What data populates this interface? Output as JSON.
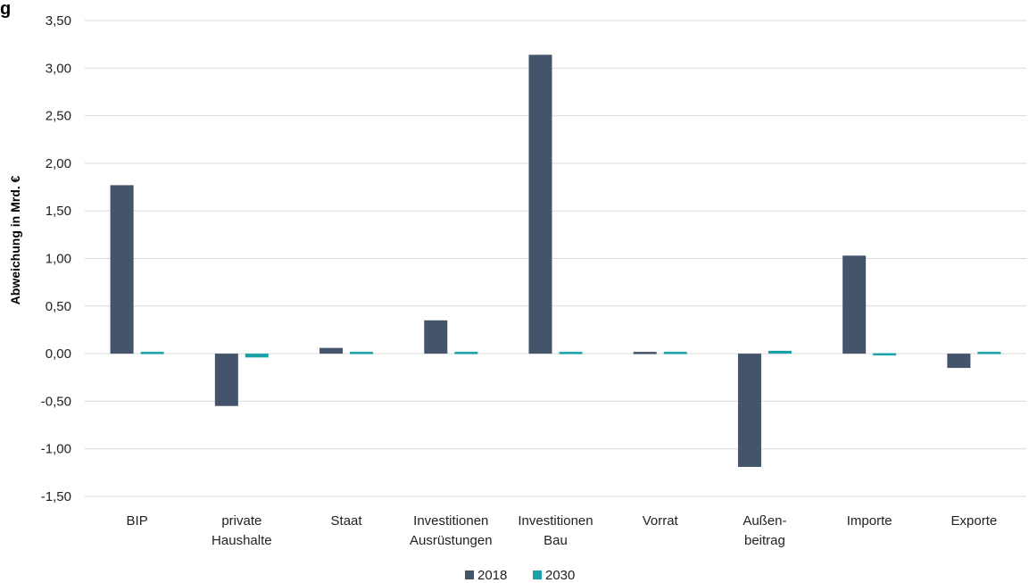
{
  "chart_data": {
    "type": "bar",
    "title": "g",
    "xlabel": "",
    "ylabel": "Abweichung in Mrd. €",
    "ylim": [
      -1.5,
      3.5
    ],
    "yticks": [
      3.5,
      3.0,
      2.5,
      2.0,
      1.5,
      1.0,
      0.5,
      0.0,
      -0.5,
      -1.0,
      -1.5
    ],
    "ytick_labels": [
      "3,50",
      "3,00",
      "2,50",
      "2,00",
      "1,50",
      "1,00",
      "0,50",
      "0,00",
      "-0,50",
      "-1,00",
      "-1,50"
    ],
    "grid": true,
    "legend_position": "bottom",
    "categories": [
      [
        "BIP"
      ],
      [
        "private",
        "Haushalte"
      ],
      [
        "Staat"
      ],
      [
        "Investitionen",
        "Ausrüstungen"
      ],
      [
        "Investitionen",
        "Bau"
      ],
      [
        "Vorrat"
      ],
      [
        "Außen-",
        "beitrag"
      ],
      [
        "Importe"
      ],
      [
        "Exporte"
      ]
    ],
    "series": [
      {
        "name": "2018",
        "color": "#44546a",
        "values": [
          1.77,
          -0.55,
          0.06,
          0.35,
          3.14,
          0.01,
          -1.19,
          1.03,
          -0.15
        ]
      },
      {
        "name": "2030",
        "color": "#17a2a8",
        "values": [
          0.01,
          -0.04,
          0.01,
          0.02,
          0.01,
          0.0,
          0.03,
          -0.01,
          0.02
        ]
      }
    ]
  }
}
